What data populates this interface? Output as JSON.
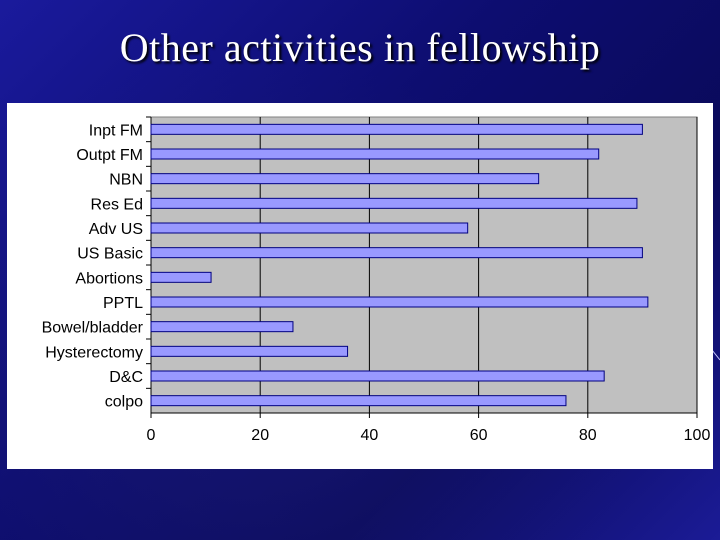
{
  "slide": {
    "title": "Other activities in fellowship"
  },
  "colors": {
    "background": "#12127e",
    "plot_area": "#c0c0c0",
    "bar_fill": "#9999ff",
    "bar_stroke": "#000080"
  },
  "chart_data": {
    "type": "bar",
    "orientation": "horizontal",
    "categories": [
      "Inpt FM",
      "Outpt FM",
      "NBN",
      "Res Ed",
      "Adv US",
      "US Basic",
      "Abortions",
      "PPTL",
      "Bowel/bladder",
      "Hysterectomy",
      "D&C",
      "colpo"
    ],
    "values": [
      90,
      82,
      71,
      89,
      58,
      90,
      11,
      91,
      26,
      36,
      83,
      76
    ],
    "xlim": [
      0,
      100
    ],
    "xticks": [
      "0",
      "20",
      "40",
      "60",
      "80",
      "100"
    ],
    "grid": true,
    "legend": false
  }
}
